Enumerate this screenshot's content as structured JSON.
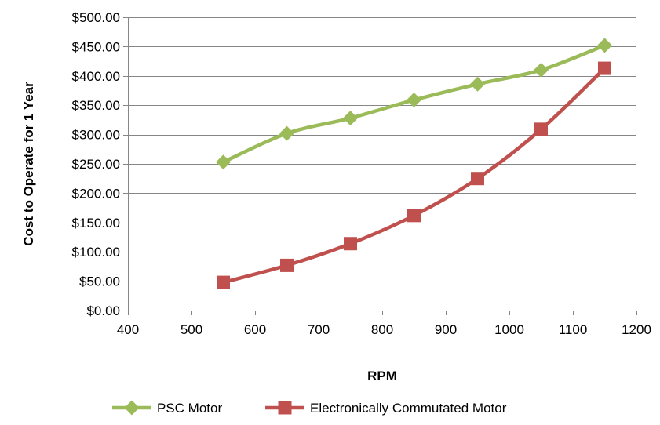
{
  "chart_data": {
    "type": "line",
    "title": "",
    "xlabel": "RPM",
    "ylabel": "Cost to Operate for 1 Year",
    "xlim": [
      400,
      1200
    ],
    "ylim": [
      0,
      500
    ],
    "x_ticks": [
      400,
      500,
      600,
      700,
      800,
      900,
      1000,
      1100,
      1200
    ],
    "y_ticks": [
      0,
      50,
      100,
      150,
      200,
      250,
      300,
      350,
      400,
      450,
      500
    ],
    "x_tick_labels": [
      "400",
      "500",
      "600",
      "700",
      "800",
      "900",
      "1000",
      "1100",
      "1200"
    ],
    "y_tick_labels": [
      "$0.00",
      "$50.00",
      "$100.00",
      "$150.00",
      "$200.00",
      "$250.00",
      "$300.00",
      "$350.00",
      "$400.00",
      "$450.00",
      "$500.00"
    ],
    "grid": "horizontal",
    "legend_position": "bottom",
    "series": [
      {
        "name": "PSC Motor",
        "color": "#9bbb59",
        "marker": "diamond",
        "x": [
          550,
          650,
          750,
          850,
          950,
          1050,
          1150
        ],
        "y": [
          253,
          302,
          328,
          359,
          386,
          410,
          452
        ]
      },
      {
        "name": "Electronically Commutated Motor",
        "color": "#c0504d",
        "marker": "square",
        "x": [
          550,
          650,
          750,
          850,
          950,
          1050,
          1150
        ],
        "y": [
          48,
          77,
          114,
          162,
          225,
          309,
          413
        ]
      }
    ]
  }
}
